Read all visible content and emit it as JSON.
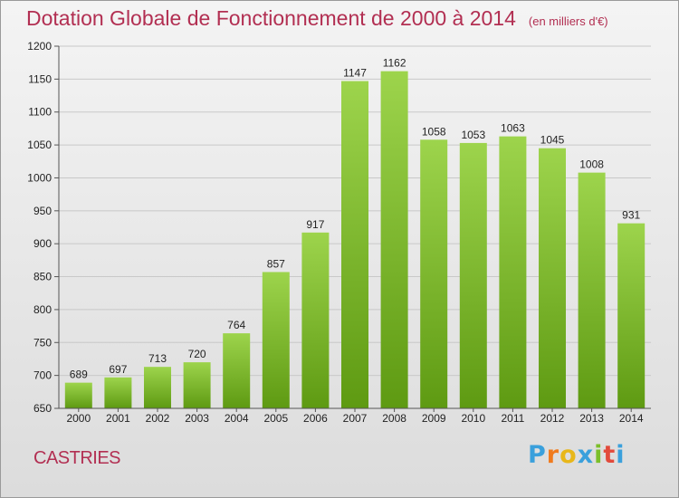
{
  "header": {
    "title": "Dotation Globale de Fonctionnement de 2000 à 2014",
    "subtitle": "(en milliers d'€)"
  },
  "footer": {
    "commune": "CASTRIES",
    "logo_letters": [
      "P",
      "r",
      "o",
      "x",
      "i",
      "t",
      "i"
    ],
    "logo_colors": [
      "#3aa0dc",
      "#f07b1e",
      "#e8b71a",
      "#3aa0dc",
      "#7bbf2a",
      "#e24a3b",
      "#3aa0dc"
    ]
  },
  "colors": {
    "title": "#b22f52",
    "bar_top": "#9dd44c",
    "bar_bottom": "#5e9a12",
    "grid": "#c8c8c8"
  },
  "chart_data": {
    "type": "bar",
    "title": "Dotation Globale de Fonctionnement de 2000 à 2014",
    "subtitle": "(en milliers d'€)",
    "categories": [
      "2000",
      "2001",
      "2002",
      "2003",
      "2004",
      "2005",
      "2006",
      "2007",
      "2008",
      "2009",
      "2010",
      "2011",
      "2012",
      "2013",
      "2014"
    ],
    "values": [
      689,
      697,
      713,
      720,
      764,
      857,
      917,
      1147,
      1162,
      1058,
      1053,
      1063,
      1045,
      1008,
      931
    ],
    "ylim": [
      650,
      1200
    ],
    "yticks": [
      650,
      700,
      750,
      800,
      850,
      900,
      950,
      1000,
      1050,
      1100,
      1150,
      1200
    ],
    "grid": true,
    "xlabel": "",
    "ylabel": ""
  }
}
